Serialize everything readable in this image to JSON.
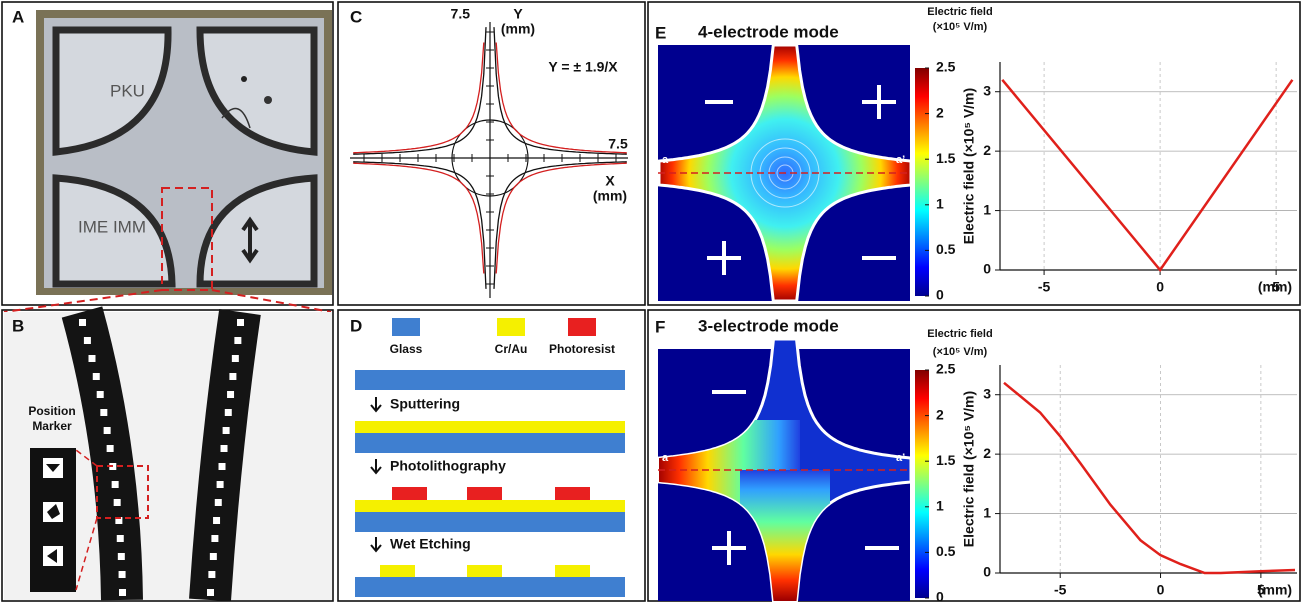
{
  "panels": {
    "A": {
      "label": "A",
      "texts": [
        "PKU",
        "IME IMM"
      ]
    },
    "B": {
      "label": "B",
      "inset_title": [
        "Position",
        "Marker"
      ]
    },
    "C": {
      "label": "C",
      "y_max": "7.5",
      "y_axis": [
        "Y",
        "(mm)"
      ],
      "equation": "Y = ± 1.9/X",
      "x_max": "7.5",
      "x_axis": [
        "X",
        "(mm)"
      ]
    },
    "D": {
      "label": "D",
      "legend": [
        "Glass",
        "Cr/Au",
        "Photoresist"
      ],
      "steps": [
        "Sputtering",
        "Photolithography",
        "Wet Etching"
      ]
    },
    "E": {
      "label": "E",
      "title": "4-electrode mode",
      "colorbar": {
        "title": [
          "Electric field",
          "(×10⁵ V/m)"
        ],
        "clim": [
          0,
          2.5
        ],
        "ticks": [
          0,
          0.5,
          1,
          1.5,
          2,
          2.5
        ]
      },
      "cut_labels": [
        "a",
        "a’"
      ]
    },
    "F": {
      "label": "F",
      "title": "3-electrode mode",
      "colorbar": {
        "title": [
          "Electric field",
          "(×10⁵ V/m)"
        ],
        "clim": [
          0,
          2.5
        ],
        "ticks": [
          0,
          0.5,
          1,
          1.5,
          2,
          2.5
        ]
      },
      "cut_labels": [
        "a",
        "a’"
      ]
    }
  },
  "chart_data": [
    {
      "type": "line",
      "ylabel": "Electric field (×10⁵ V/m)",
      "xlabel": "(mm)",
      "x": [
        -6.8,
        0,
        5.7
      ],
      "values": [
        3.2,
        0,
        3.2
      ],
      "color": "#e0201b",
      "xlim": [
        -6.9,
        5.9
      ],
      "ylim": [
        0,
        3.5
      ],
      "xticks": [
        -5,
        0,
        5
      ],
      "yticks": [
        0,
        1,
        2,
        3
      ],
      "grid": true
    },
    {
      "type": "line",
      "ylabel": "Electric field (×10⁵ V/m)",
      "xlabel": "(mm)",
      "x": [
        -7.8,
        -6,
        -5,
        -4,
        -2.5,
        -1,
        0,
        1,
        2.2,
        3,
        5,
        6.7
      ],
      "values": [
        3.2,
        2.7,
        2.3,
        1.85,
        1.15,
        0.55,
        0.3,
        0.15,
        0,
        0,
        0.03,
        0.05
      ],
      "color": "#e0201b",
      "xlim": [
        -8,
        6.8
      ],
      "ylim": [
        0,
        3.5
      ],
      "xticks": [
        -5,
        0,
        5
      ],
      "yticks": [
        0,
        1,
        2,
        3
      ],
      "grid": true
    }
  ]
}
